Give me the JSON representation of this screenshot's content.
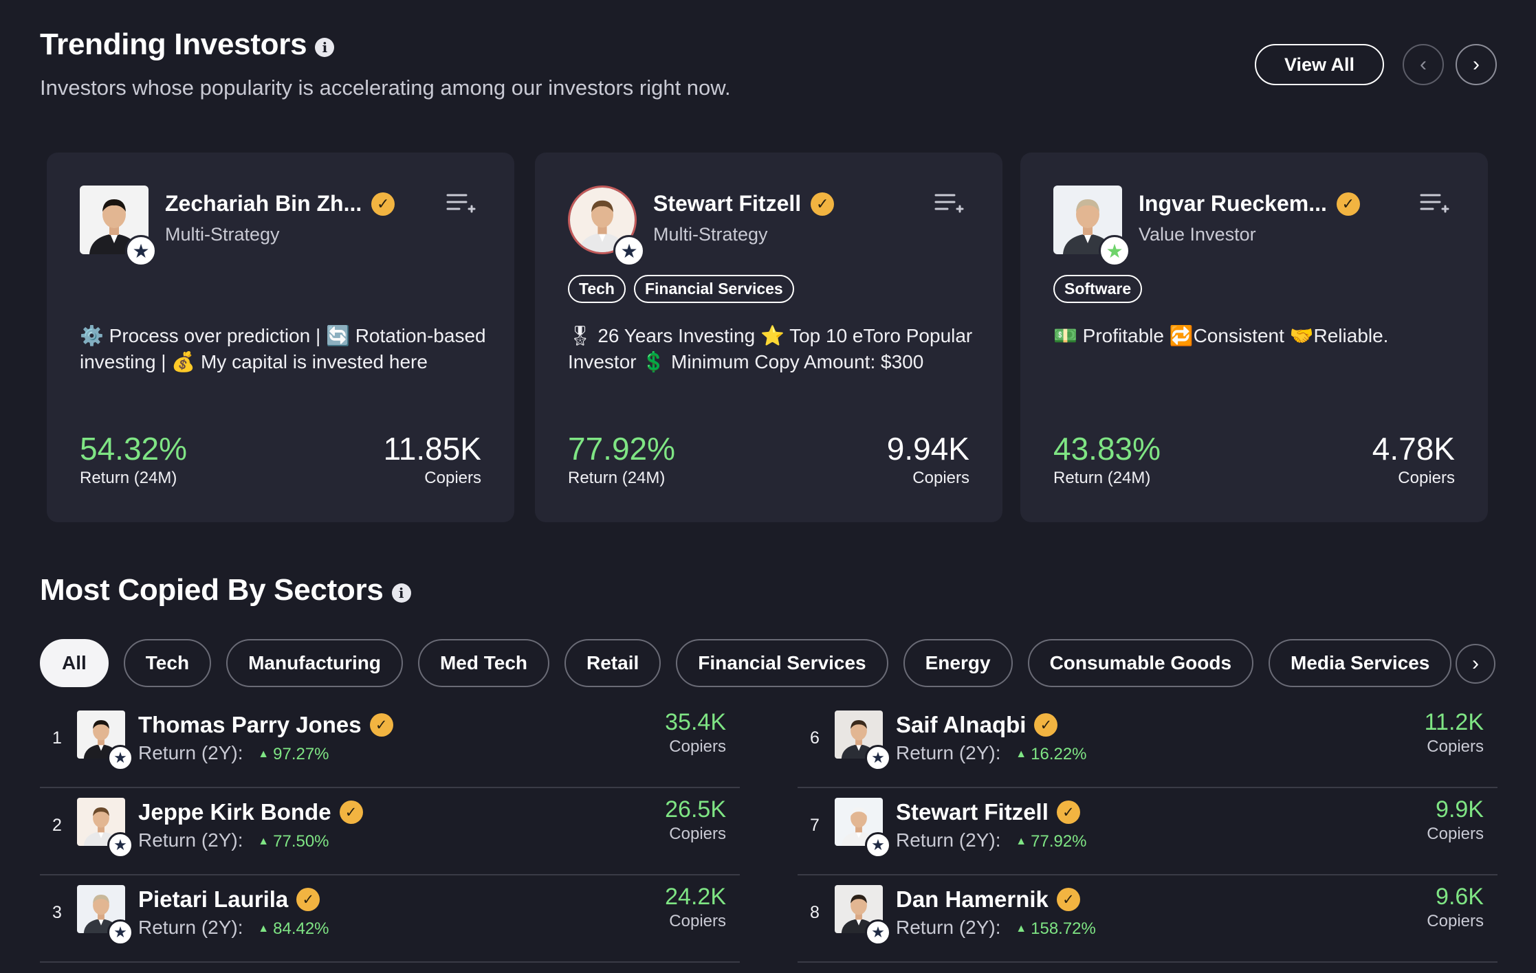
{
  "trending": {
    "title": "Trending Investors",
    "subtitle": "Investors whose popularity is accelerating among our investors right now.",
    "view_all_label": "View All",
    "prev_icon": "chevron-left-icon",
    "next_icon": "chevron-right-icon",
    "cards": [
      {
        "name": "Zechariah Bin Zh...",
        "style": "Multi-Strategy",
        "tags": [],
        "bio": "⚙️ Process over prediction | 🔄 Rotation-based investing | 💰 My capital is invested here",
        "return_value": "54.32%",
        "return_label": "Return (24M)",
        "copiers_value": "11.85K",
        "copiers_label": "Copiers",
        "badge": "star-dark"
      },
      {
        "name": "Stewart Fitzell",
        "style": "Multi-Strategy",
        "tags": [
          "Tech",
          "Financial Services"
        ],
        "bio": "🎖 26 Years Investing ⭐ Top 10 eToro Popular Investor 💲 Minimum Copy Amount: $300",
        "return_value": "77.92%",
        "return_label": "Return (24M)",
        "copiers_value": "9.94K",
        "copiers_label": "Copiers",
        "badge": "star-dark"
      },
      {
        "name": "Ingvar Rueckem...",
        "style": "Value Investor",
        "tags": [
          "Software"
        ],
        "bio": "💵 Profitable 🔁Consistent 🤝Reliable.",
        "return_value": "43.83%",
        "return_label": "Return (24M)",
        "copiers_value": "4.78K",
        "copiers_label": "Copiers",
        "badge": "star-green"
      }
    ]
  },
  "sectors": {
    "title": "Most Copied By Sectors",
    "pills": [
      "All",
      "Tech",
      "Manufacturing",
      "Med Tech",
      "Retail",
      "Financial Services",
      "Energy",
      "Consumable Goods",
      "Media Services"
    ],
    "active_pill": "All",
    "return_label": "Return (2Y):",
    "copiers_label": "Copiers",
    "left_list": [
      {
        "rank": "1",
        "name": "Thomas Parry Jones",
        "return": "97.27%",
        "copiers": "35.4K"
      },
      {
        "rank": "2",
        "name": "Jeppe Kirk Bonde",
        "return": "77.50%",
        "copiers": "26.5K"
      },
      {
        "rank": "3",
        "name": "Pietari Laurila",
        "return": "84.42%",
        "copiers": "24.2K"
      }
    ],
    "right_list": [
      {
        "rank": "6",
        "name": "Saif Alnaqbi",
        "return": "16.22%",
        "copiers": "11.2K"
      },
      {
        "rank": "7",
        "name": "Stewart Fitzell",
        "return": "77.92%",
        "copiers": "9.9K"
      },
      {
        "rank": "8",
        "name": "Dan Hamernik",
        "return": "158.72%",
        "copiers": "9.6K"
      }
    ]
  },
  "colors": {
    "background": "#1b1c26",
    "card": "#252633",
    "positive": "#7fe584",
    "verified": "#f2b441"
  }
}
